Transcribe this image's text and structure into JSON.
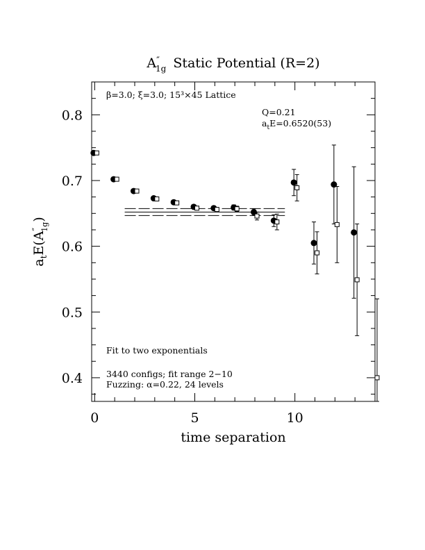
{
  "chart_data": {
    "type": "scatter",
    "title_main": "A",
    "title_prime": "″",
    "title_sub": "1g",
    "title_rest": "Static Potential (R=2)",
    "xlabel": "time separation",
    "ylabel_main": "a",
    "ylabel_t": "t",
    "ylabel_mid": "E(A",
    "ylabel_prime": "″",
    "ylabel_sub": "1g",
    "ylabel_close": ")",
    "xlim": [
      -0.15,
      14.0
    ],
    "ylim": [
      0.364,
      0.85
    ],
    "x_ticks": [
      0,
      5,
      10
    ],
    "y_ticks": [
      0.4,
      0.5,
      0.6,
      0.7,
      0.8
    ],
    "x_tick_labels": [
      "0",
      "5",
      "10"
    ],
    "y_tick_labels": [
      "0.4",
      "0.5",
      "0.6",
      "0.7",
      "0.8"
    ],
    "annotations": {
      "lattice": "β=3.0; ξ=3.0; 15³×45 Lattice",
      "q": "Q=0.21",
      "energy_a": "a",
      "energy_t": "t",
      "energy_rest": "E=0.6520(53)",
      "fit_method": "Fit to two exponentials",
      "configs": "3440 configs; fit range 2−10",
      "fuzzing": "Fuzzing: α=0.22, 24 levels"
    },
    "fit": {
      "value": 0.652,
      "error": 0.0053,
      "t_range": [
        1.5,
        9.5
      ]
    },
    "series": [
      {
        "marker": "filled-circle",
        "points": [
          {
            "x": 0,
            "y": 0.742,
            "err": 0.002
          },
          {
            "x": 1,
            "y": 0.702,
            "err": 0.002
          },
          {
            "x": 2,
            "y": 0.684,
            "err": 0.002
          },
          {
            "x": 3,
            "y": 0.673,
            "err": 0.002
          },
          {
            "x": 4,
            "y": 0.667,
            "err": 0.003
          },
          {
            "x": 5,
            "y": 0.66,
            "err": 0.003
          },
          {
            "x": 6,
            "y": 0.658,
            "err": 0.003
          },
          {
            "x": 7,
            "y": 0.659,
            "err": 0.004
          },
          {
            "x": 8,
            "y": 0.652,
            "err": 0.005
          },
          {
            "x": 9,
            "y": 0.639,
            "err": 0.009
          },
          {
            "x": 10,
            "y": 0.697,
            "err": 0.02
          },
          {
            "x": 11,
            "y": 0.605,
            "err": 0.032
          },
          {
            "x": 12,
            "y": 0.694,
            "err": 0.06
          },
          {
            "x": 13,
            "y": 0.621,
            "err": 0.1
          }
        ]
      },
      {
        "marker": "open-square",
        "points": [
          {
            "x": 0,
            "y": 0.742,
            "err": 0.002
          },
          {
            "x": 1,
            "y": 0.702,
            "err": 0.002
          },
          {
            "x": 2,
            "y": 0.684,
            "err": 0.002
          },
          {
            "x": 3,
            "y": 0.672,
            "err": 0.002
          },
          {
            "x": 4,
            "y": 0.666,
            "err": 0.003
          },
          {
            "x": 5,
            "y": 0.658,
            "err": 0.003
          },
          {
            "x": 6,
            "y": 0.656,
            "err": 0.003
          },
          {
            "x": 7,
            "y": 0.657,
            "err": 0.004
          },
          {
            "x": 8,
            "y": 0.646,
            "err": 0.006
          },
          {
            "x": 9,
            "y": 0.637,
            "err": 0.012
          },
          {
            "x": 10,
            "y": 0.689,
            "err": 0.02
          },
          {
            "x": 11,
            "y": 0.59,
            "err": 0.032
          },
          {
            "x": 12,
            "y": 0.633,
            "err": 0.058
          },
          {
            "x": 13,
            "y": 0.549,
            "err": 0.085
          },
          {
            "x": 14,
            "y": 0.4,
            "err": 0.12
          }
        ]
      }
    ]
  }
}
